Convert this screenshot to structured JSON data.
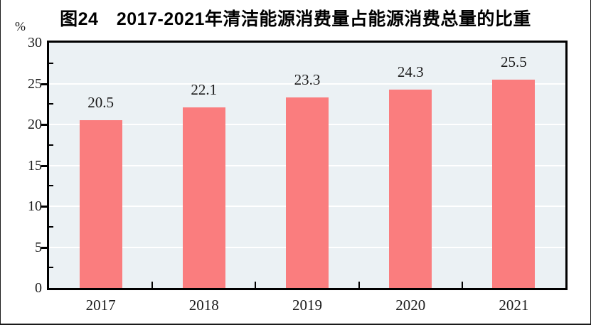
{
  "figure": {
    "title": "图24　2017-2021年清洁能源消费量占能源消费总量的比重",
    "unit_label": "%"
  },
  "colors": {
    "bar": "#fa7d7e",
    "plot_background": "#ebf1f4",
    "gridline": "#ffffff",
    "frame": "#000000",
    "title_text": "#000000",
    "label_text": "#1a1a1a"
  },
  "chart_data": {
    "type": "bar",
    "title": "图24　2017-2021年清洁能源消费量占能源消费总量的比重",
    "categories": [
      "2017",
      "2018",
      "2019",
      "2020",
      "2021"
    ],
    "values": [
      20.5,
      22.1,
      23.3,
      24.3,
      25.5
    ],
    "data_labels": [
      "20.5",
      "22.1",
      "23.3",
      "24.3",
      "25.5"
    ],
    "xlabel": "",
    "ylabel": "%",
    "ylim": [
      0,
      30
    ],
    "yticks": [
      0,
      5,
      10,
      15,
      20,
      25,
      30
    ],
    "ytick_major_step": 5,
    "ytick_minor_step": 2.5,
    "grid": true,
    "legend": false
  }
}
